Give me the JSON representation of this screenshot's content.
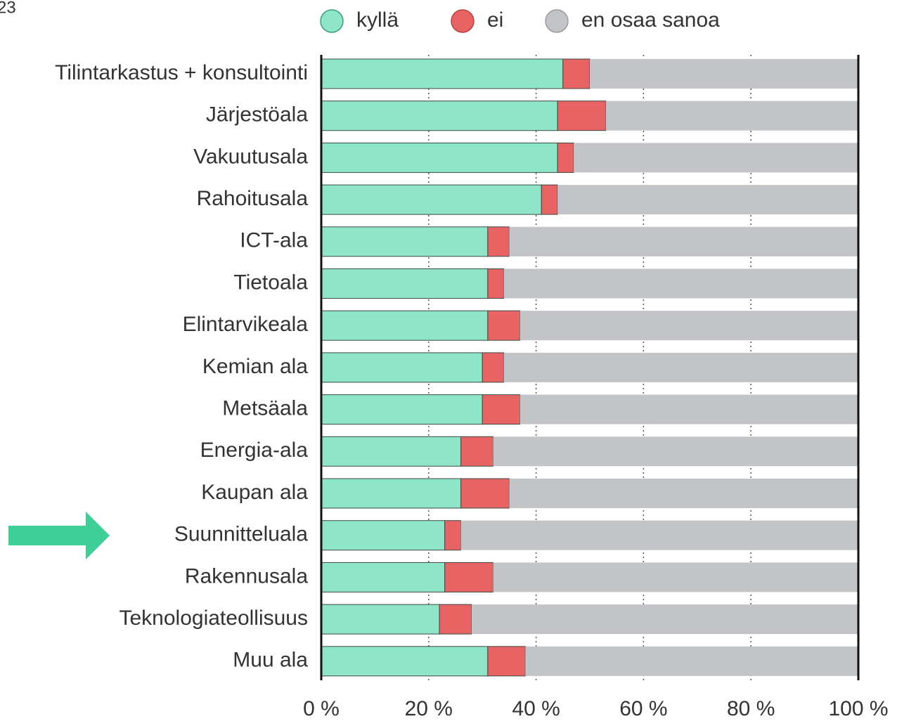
{
  "corner_text": "23",
  "chart_data": {
    "type": "stacked-barh",
    "categories": [
      "Tilintarkastus + konsultointi",
      "Järjestöala",
      "Vakuutusala",
      "Rahoitusala",
      "ICT-ala",
      "Tietoala",
      "Elintarvikeala",
      "Kemian ala",
      "Metsäala",
      "Energia-ala",
      "Kaupan ala",
      "Suunnitteluala",
      "Rakennusala",
      "Teknologiateollisuus",
      "Muu ala"
    ],
    "series": [
      {
        "name": "kyllä",
        "color": "#8ee5c8",
        "values": [
          45,
          44,
          44,
          41,
          31,
          31,
          31,
          30,
          30,
          26,
          26,
          23,
          23,
          22,
          31
        ]
      },
      {
        "name": "ei",
        "color": "#e86464",
        "values": [
          5,
          9,
          3,
          3,
          4,
          3,
          6,
          4,
          7,
          6,
          9,
          3,
          9,
          6,
          7
        ]
      },
      {
        "name": "en osaa sanoa",
        "color": "#c3c4c8",
        "values": [
          50,
          47,
          53,
          56,
          65,
          66,
          63,
          66,
          63,
          68,
          65,
          74,
          68,
          72,
          62
        ]
      }
    ],
    "xlim": [
      0,
      100
    ],
    "xticks": [
      {
        "value": 0,
        "label": "0 %"
      },
      {
        "value": 20,
        "label": "20 %"
      },
      {
        "value": 40,
        "label": "40 %"
      },
      {
        "value": 60,
        "label": "60 %"
      },
      {
        "value": 80,
        "label": "80 %"
      },
      {
        "value": 100,
        "label": "100 %"
      }
    ],
    "grid": true,
    "legend": "top"
  }
}
